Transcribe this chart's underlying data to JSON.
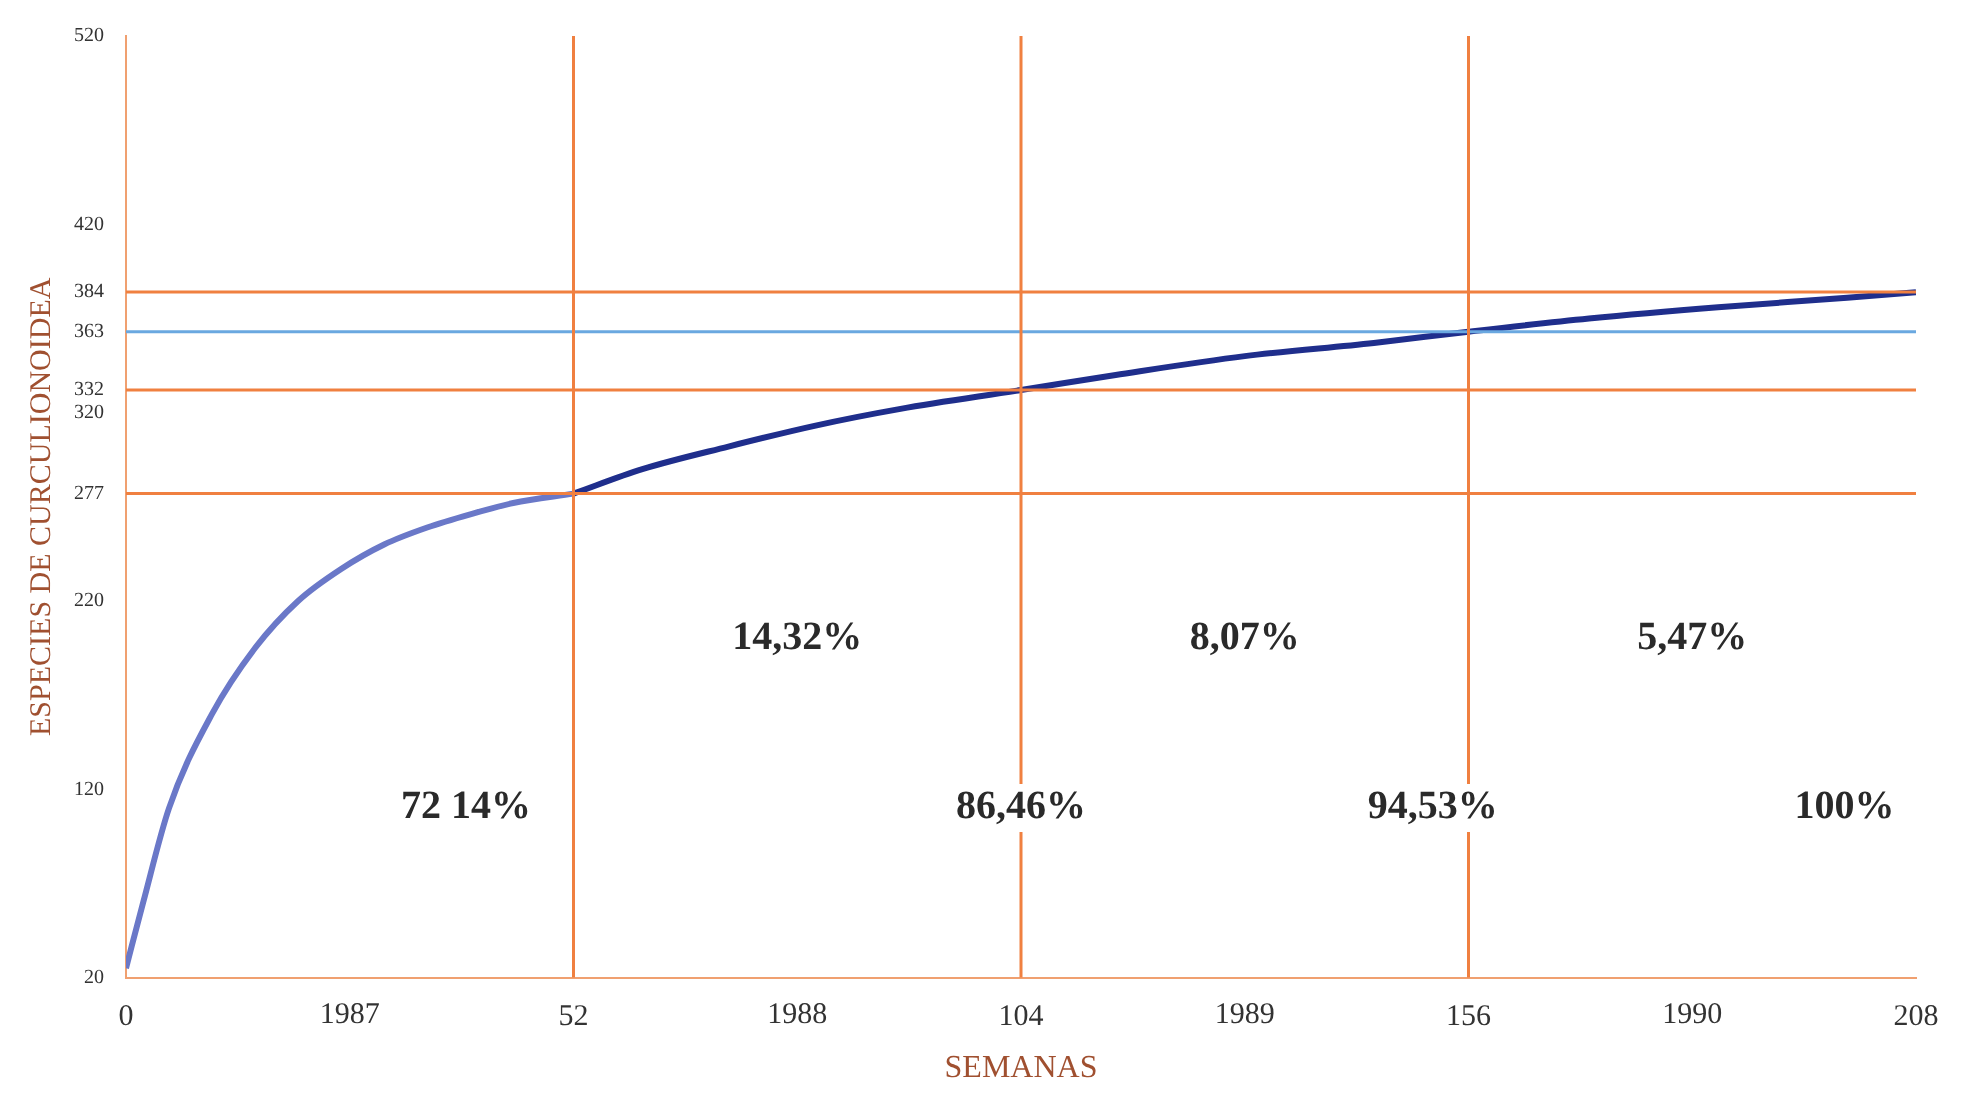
{
  "chart_data": {
    "type": "line",
    "xlabel": "SEMANAS",
    "ylabel": "ESPECIES DE CURCULIONOIDEA",
    "xlim": [
      0,
      208
    ],
    "xticks": [
      0,
      52,
      104,
      156,
      208
    ],
    "x2lim": [
      1986.5,
      1990.5
    ],
    "x2ticks": [
      1987,
      1988,
      1989,
      1990
    ],
    "ylim": [
      20,
      520
    ],
    "yticks": [
      20,
      120,
      220,
      277,
      320,
      332,
      363,
      384,
      420,
      520
    ],
    "series": [
      {
        "color": "#6a78c8",
        "x": [
          0,
          2,
          5,
          10,
          15,
          20,
          25,
          30,
          35,
          40,
          45,
          52
        ],
        "values": [
          25,
          60,
          110,
          160,
          195,
          220,
          237,
          250,
          259,
          266,
          272,
          277
        ]
      },
      {
        "color": "#1f2e8c",
        "x": [
          52,
          60,
          70,
          80,
          90,
          104,
          115,
          130,
          145,
          156,
          170,
          185,
          200,
          208
        ],
        "values": [
          277,
          290,
          302,
          313,
          322,
          332,
          340,
          350,
          357,
          363,
          370,
          376,
          381,
          384
        ]
      }
    ],
    "ref_lines": [
      {
        "axis": "y",
        "value": 277,
        "color": "#f08040"
      },
      {
        "axis": "y",
        "value": 332,
        "color": "#f08040"
      },
      {
        "axis": "y",
        "value": 363,
        "color": "#6aa8e0"
      },
      {
        "axis": "y",
        "value": 384,
        "color": "#f08040"
      },
      {
        "axis": "x",
        "value": 52,
        "color": "#f08040"
      },
      {
        "axis": "x",
        "value": 104,
        "color": "#f08040"
      },
      {
        "axis": "x",
        "value": 156,
        "color": "#f08040"
      }
    ],
    "annotations": [
      "14,32%",
      "8,07%",
      "5,47%",
      "72 14%",
      "86,46%",
      "94,53%",
      "100%"
    ],
    "marker": "none",
    "grid": false,
    "legend": false
  }
}
